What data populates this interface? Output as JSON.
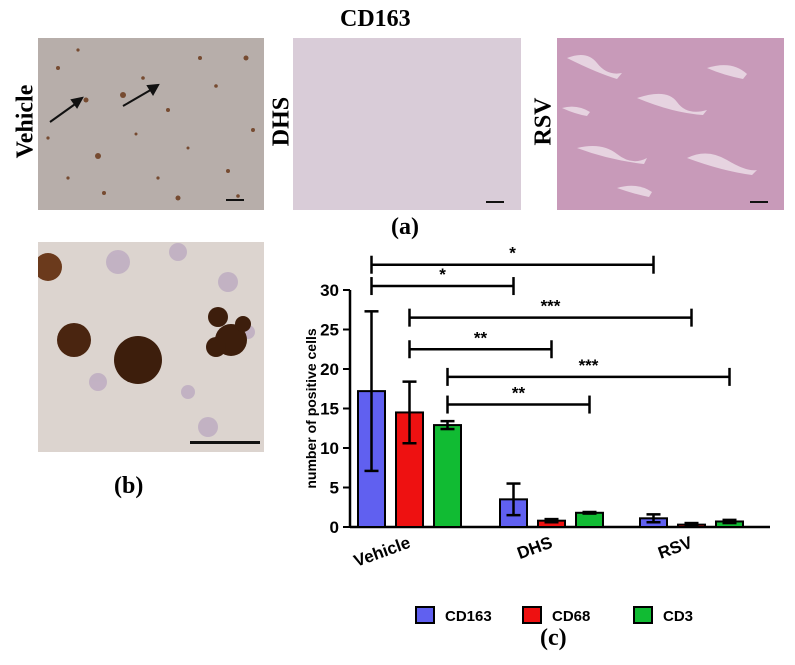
{
  "figure": {
    "title": "CD163",
    "panel_a_label": "(a)",
    "panel_b_label": "(b)",
    "panel_c_label": "(c)",
    "images": [
      {
        "label": "Vehicle",
        "tissue_color": "#b7aeaa"
      },
      {
        "label": "DHS",
        "tissue_color": "#d9ccd8"
      },
      {
        "label": "RSV",
        "tissue_color": "#c89ab9"
      }
    ]
  },
  "chart_data": {
    "type": "bar",
    "categories": [
      "Vehicle",
      "DHS",
      "RSV"
    ],
    "ylabel": "number of positive cells",
    "xlabel": "",
    "ylim": [
      0,
      30
    ],
    "yticks": [
      0,
      5,
      10,
      15,
      20,
      25,
      30
    ],
    "series": [
      {
        "name": "CD163",
        "color": "#6060f0",
        "values": [
          17.2,
          3.5,
          1.1
        ],
        "errors": [
          10.1,
          2.0,
          0.5
        ]
      },
      {
        "name": "CD68",
        "color": "#ee1111",
        "values": [
          14.5,
          0.8,
          0.3
        ],
        "errors": [
          3.9,
          0.2,
          0.2
        ]
      },
      {
        "name": "CD3",
        "color": "#11bb33",
        "values": [
          12.9,
          1.8,
          0.7
        ],
        "errors": [
          0.5,
          0.1,
          0.2
        ]
      }
    ],
    "significance": [
      {
        "from": [
          0,
          0
        ],
        "to": [
          1,
          0
        ],
        "label": "*",
        "y": 30.5
      },
      {
        "from": [
          0,
          0
        ],
        "to": [
          2,
          0
        ],
        "label": "*",
        "y": 33.2
      },
      {
        "from": [
          0,
          1
        ],
        "to": [
          1,
          1
        ],
        "label": "**",
        "y": 22.5
      },
      {
        "from": [
          0,
          1
        ],
        "to": [
          2,
          1
        ],
        "label": "***",
        "y": 26.5
      },
      {
        "from": [
          0,
          2
        ],
        "to": [
          1,
          2
        ],
        "label": "**",
        "y": 15.5
      },
      {
        "from": [
          0,
          2
        ],
        "to": [
          2,
          2
        ],
        "label": "***",
        "y": 19.0
      }
    ],
    "legend_position": "bottom"
  }
}
